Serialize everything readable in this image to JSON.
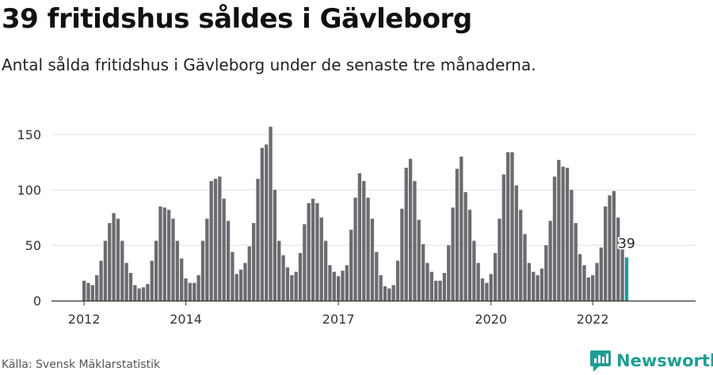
{
  "header": {
    "title": "39 fritidshus såldes i Gävleborg",
    "subtitle": "Antal sålda fritidshus i Gävleborg under de senaste tre månaderna."
  },
  "footer": {
    "source": "Källa: Svensk Mäklarstatistik",
    "brand": "Newsworthy"
  },
  "colors": {
    "bar": "#6b6b70",
    "highlight": "#1a9b93",
    "grid": "#dddddd",
    "axis": "#333333"
  },
  "chart_data": {
    "type": "bar",
    "title": "",
    "xlabel": "",
    "ylabel": "",
    "ylim": [
      0,
      160
    ],
    "yticks": [
      0,
      50,
      100,
      150
    ],
    "grid": "horizontal",
    "xticks": [
      "2012",
      "2014",
      "2017",
      "2020",
      "2022"
    ],
    "xtick_month_index": [
      0,
      24,
      60,
      96,
      120
    ],
    "start_month": "2012-01",
    "values": [
      18,
      16,
      14,
      23,
      36,
      54,
      70,
      79,
      74,
      54,
      34,
      25,
      14,
      11,
      12,
      15,
      36,
      54,
      85,
      84,
      82,
      74,
      54,
      38,
      20,
      16,
      16,
      23,
      54,
      74,
      108,
      110,
      112,
      92,
      72,
      44,
      24,
      28,
      34,
      49,
      70,
      110,
      138,
      141,
      157,
      100,
      54,
      41,
      30,
      23,
      26,
      43,
      69,
      88,
      92,
      88,
      75,
      54,
      32,
      26,
      22,
      27,
      32,
      64,
      93,
      115,
      108,
      93,
      74,
      44,
      23,
      13,
      11,
      14,
      36,
      83,
      120,
      128,
      108,
      73,
      51,
      34,
      26,
      18,
      18,
      25,
      50,
      84,
      119,
      130,
      98,
      82,
      54,
      34,
      20,
      16,
      24,
      43,
      74,
      114,
      134,
      134,
      104,
      82,
      60,
      34,
      26,
      23,
      29,
      50,
      72,
      112,
      127,
      121,
      120,
      100,
      70,
      42,
      32,
      21,
      23,
      34,
      48,
      85,
      95,
      99,
      75,
      50,
      39
    ],
    "highlight_label": "39",
    "last_value": 39
  }
}
